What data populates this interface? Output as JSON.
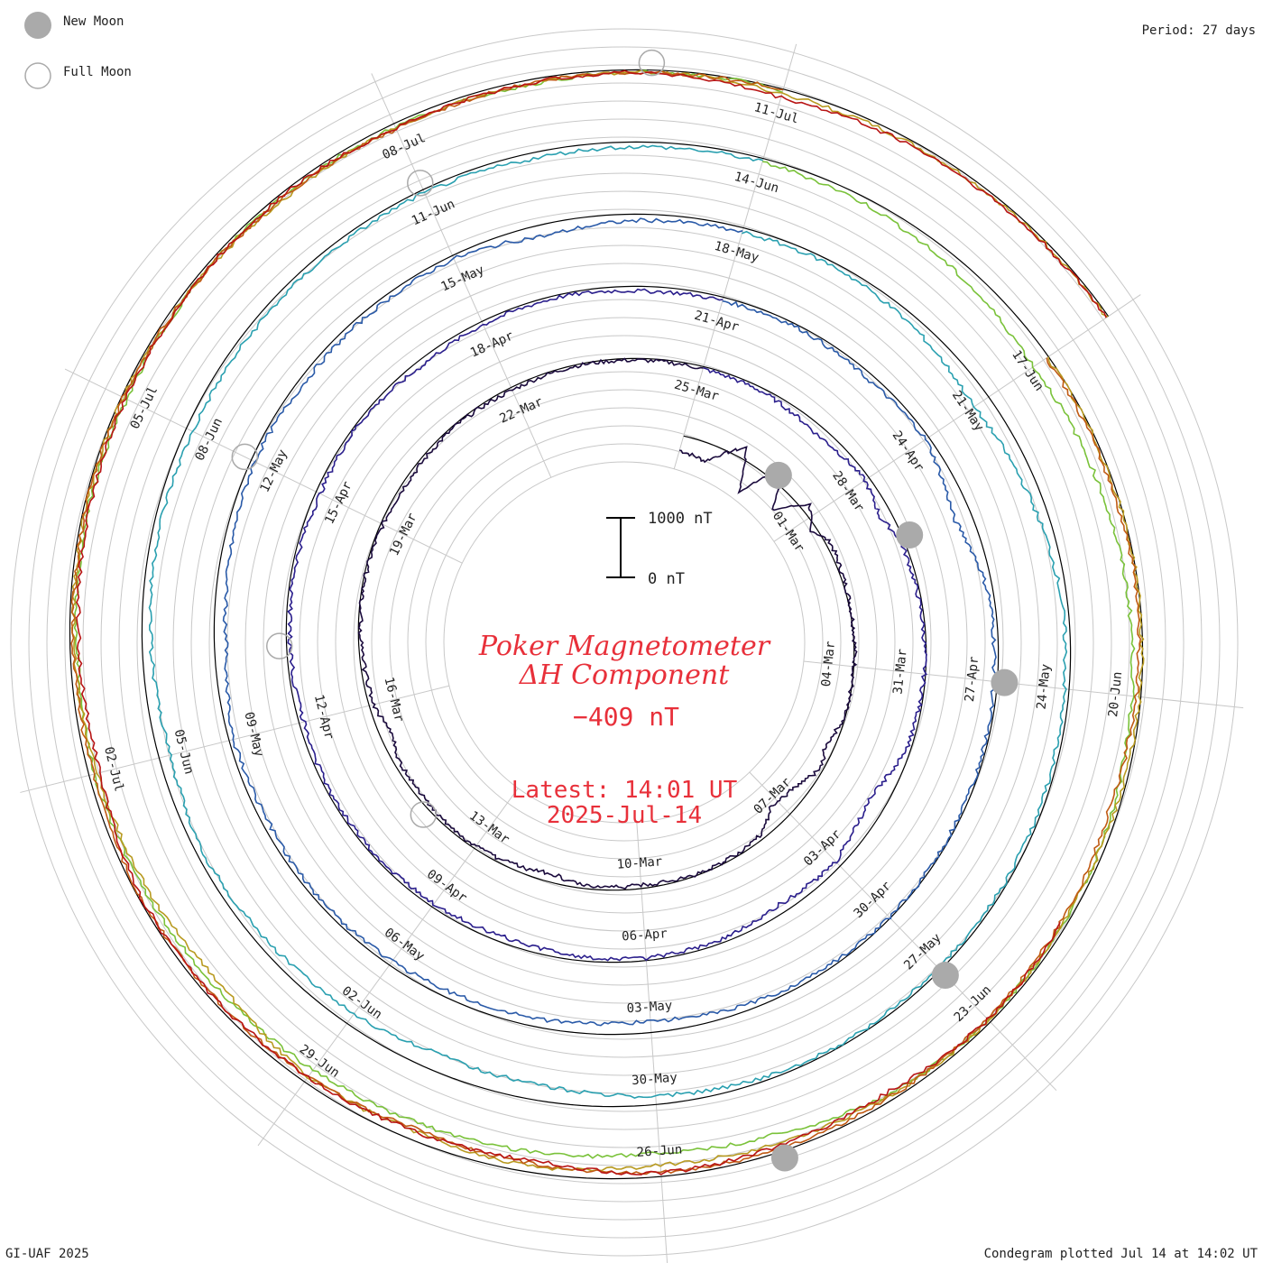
{
  "legend": {
    "new_moon": "New Moon",
    "full_moon": "Full Moon"
  },
  "period": "Period: 27 days",
  "credit": "GI-UAF 2025",
  "plotted": "Condegram plotted Jul 14 at 14:02 UT",
  "title_line1": "Poker Magnetometer",
  "title_line2": "ΔH Component",
  "current_value": "−409 nT",
  "latest_time": "Latest: 14:01 UT",
  "latest_date": "2025-Jul-14",
  "scale": {
    "top_label": "1000 nT",
    "bottom_label": "0 nT",
    "range_nT": [
      0,
      1000
    ]
  },
  "colors": {
    "grid": "#c8c8c8",
    "baseline": "#000000",
    "moon_new": "#aaaaaa",
    "moon_full": "#aaaaaa",
    "title": "#e8303a"
  },
  "chart_data": {
    "type": "condegram-spiral",
    "period_days": 27,
    "component": "ΔH",
    "units": "nT",
    "start_date": "2025-02-26",
    "end_date": "2025-07-14",
    "date_labels": [
      {
        "label": "01-Mar",
        "date": "2025-03-01"
      },
      {
        "label": "04-Mar",
        "date": "2025-03-04"
      },
      {
        "label": "07-Mar",
        "date": "2025-03-07"
      },
      {
        "label": "10-Mar",
        "date": "2025-03-10"
      },
      {
        "label": "13-Mar",
        "date": "2025-03-13"
      },
      {
        "label": "16-Mar",
        "date": "2025-03-16"
      },
      {
        "label": "19-Mar",
        "date": "2025-03-19"
      },
      {
        "label": "22-Mar",
        "date": "2025-03-22"
      },
      {
        "label": "25-Mar",
        "date": "2025-03-25"
      },
      {
        "label": "28-Mar",
        "date": "2025-03-28"
      },
      {
        "label": "31-Mar",
        "date": "2025-03-31"
      },
      {
        "label": "03-Apr",
        "date": "2025-04-03"
      },
      {
        "label": "06-Apr",
        "date": "2025-04-06"
      },
      {
        "label": "09-Apr",
        "date": "2025-04-09"
      },
      {
        "label": "12-Apr",
        "date": "2025-04-12"
      },
      {
        "label": "15-Apr",
        "date": "2025-04-15"
      },
      {
        "label": "18-Apr",
        "date": "2025-04-18"
      },
      {
        "label": "21-Apr",
        "date": "2025-04-21"
      },
      {
        "label": "24-Apr",
        "date": "2025-04-24"
      },
      {
        "label": "27-Apr",
        "date": "2025-04-27"
      },
      {
        "label": "30-Apr",
        "date": "2025-04-30"
      },
      {
        "label": "03-May",
        "date": "2025-05-03"
      },
      {
        "label": "06-May",
        "date": "2025-05-06"
      },
      {
        "label": "09-May",
        "date": "2025-05-09"
      },
      {
        "label": "12-May",
        "date": "2025-05-12"
      },
      {
        "label": "15-May",
        "date": "2025-05-15"
      },
      {
        "label": "18-May",
        "date": "2025-05-18"
      },
      {
        "label": "21-May",
        "date": "2025-05-21"
      },
      {
        "label": "24-May",
        "date": "2025-05-24"
      },
      {
        "label": "27-May",
        "date": "2025-05-27"
      },
      {
        "label": "30-May",
        "date": "2025-05-30"
      },
      {
        "label": "02-Jun",
        "date": "2025-06-02"
      },
      {
        "label": "05-Jun",
        "date": "2025-06-05"
      },
      {
        "label": "08-Jun",
        "date": "2025-06-08"
      },
      {
        "label": "11-Jun",
        "date": "2025-06-11"
      },
      {
        "label": "14-Jun",
        "date": "2025-06-14"
      },
      {
        "label": "17-Jun",
        "date": "2025-06-17"
      },
      {
        "label": "20-Jun",
        "date": "2025-06-20"
      },
      {
        "label": "23-Jun",
        "date": "2025-06-23"
      },
      {
        "label": "26-Jun",
        "date": "2025-06-26"
      },
      {
        "label": "29-Jun",
        "date": "2025-06-29"
      },
      {
        "label": "02-Jul",
        "date": "2025-07-02"
      },
      {
        "label": "05-Jul",
        "date": "2025-07-05"
      },
      {
        "label": "08-Jul",
        "date": "2025-07-08"
      },
      {
        "label": "11-Jul",
        "date": "2025-07-11"
      }
    ],
    "new_moons": [
      "2025-02-28",
      "2025-03-29",
      "2025-04-27",
      "2025-05-27",
      "2025-06-25"
    ],
    "full_moons": [
      "2025-03-14",
      "2025-04-13",
      "2025-05-12",
      "2025-06-11",
      "2025-07-10"
    ],
    "series": [
      {
        "cycle": 1,
        "start": "2025-02-26",
        "color": "#1a0a3c",
        "points": [
          [
            0.0,
            -250
          ],
          [
            0.6,
            -300
          ],
          [
            1.2,
            200
          ],
          [
            1.6,
            -500
          ],
          [
            2.0,
            300
          ],
          [
            2.4,
            -400
          ],
          [
            2.8,
            150
          ],
          [
            3.2,
            -100
          ],
          [
            3.6,
            80
          ],
          [
            4.2,
            40
          ],
          [
            5.0,
            20
          ],
          [
            6.0,
            10
          ],
          [
            7.0,
            -30
          ],
          [
            7.6,
            -150
          ],
          [
            8.0,
            -40
          ],
          [
            8.6,
            -250
          ],
          [
            9.2,
            -300
          ],
          [
            9.6,
            -80
          ],
          [
            10.2,
            -40
          ],
          [
            11.0,
            -20
          ],
          [
            12.0,
            -60
          ],
          [
            13.0,
            -40
          ],
          [
            13.6,
            -150
          ],
          [
            14.0,
            -100
          ],
          [
            14.6,
            -60
          ],
          [
            15.2,
            -40
          ],
          [
            16.0,
            -60
          ],
          [
            17.0,
            -100
          ],
          [
            17.4,
            -200
          ],
          [
            18.0,
            -80
          ],
          [
            19.0,
            -40
          ],
          [
            20.0,
            -20
          ],
          [
            21.0,
            -40
          ],
          [
            22.0,
            -60
          ],
          [
            23.0,
            -30
          ],
          [
            24.0,
            -50
          ],
          [
            25.0,
            -20
          ],
          [
            26.0,
            -30
          ],
          [
            27.0,
            -40
          ]
        ]
      },
      {
        "cycle": 2,
        "start": "2025-03-25",
        "color": "#2a1e8c",
        "points": [
          [
            0.0,
            -40
          ],
          [
            1.0,
            -60
          ],
          [
            2.0,
            -150
          ],
          [
            3.0,
            -80
          ],
          [
            3.6,
            -200
          ],
          [
            4.0,
            -60
          ],
          [
            5.0,
            -40
          ],
          [
            6.0,
            -20
          ],
          [
            7.0,
            -60
          ],
          [
            8.0,
            -300
          ],
          [
            8.6,
            -200
          ],
          [
            9.0,
            -100
          ],
          [
            10.0,
            -150
          ],
          [
            11.0,
            -60
          ],
          [
            12.0,
            -40
          ],
          [
            13.0,
            -80
          ],
          [
            14.0,
            -100
          ],
          [
            15.0,
            -60
          ],
          [
            16.0,
            -50
          ],
          [
            17.0,
            -40
          ],
          [
            18.0,
            -80
          ],
          [
            19.0,
            -60
          ],
          [
            20.0,
            -40
          ],
          [
            21.0,
            -80
          ],
          [
            22.0,
            -30
          ],
          [
            23.0,
            -100
          ],
          [
            24.0,
            -60
          ],
          [
            25.0,
            -40
          ],
          [
            26.0,
            -80
          ],
          [
            27.0,
            -60
          ]
        ]
      },
      {
        "cycle": 3,
        "start": "2025-04-21",
        "color": "#2a5aa8",
        "points": [
          [
            0.0,
            -60
          ],
          [
            1.0,
            -40
          ],
          [
            2.0,
            -100
          ],
          [
            3.0,
            -60
          ],
          [
            4.0,
            -300
          ],
          [
            4.6,
            -150
          ],
          [
            5.0,
            -80
          ],
          [
            6.0,
            -60
          ],
          [
            7.0,
            -40
          ],
          [
            8.0,
            -30
          ],
          [
            9.0,
            -20
          ],
          [
            10.0,
            -60
          ],
          [
            11.0,
            -100
          ],
          [
            12.0,
            -200
          ],
          [
            13.0,
            -150
          ],
          [
            14.0,
            -120
          ],
          [
            15.0,
            -80
          ],
          [
            16.0,
            -60
          ],
          [
            17.0,
            -100
          ],
          [
            18.0,
            -80
          ],
          [
            19.0,
            -200
          ],
          [
            20.0,
            -150
          ],
          [
            21.0,
            -60
          ],
          [
            22.0,
            -100
          ],
          [
            23.0,
            -80
          ],
          [
            24.0,
            -60
          ],
          [
            25.0,
            -200
          ],
          [
            26.0,
            -100
          ],
          [
            27.0,
            -80
          ]
        ]
      },
      {
        "cycle": 4,
        "start": "2025-05-18",
        "color": "#2aa0b0",
        "points": [
          [
            0.0,
            -80
          ],
          [
            1.0,
            -60
          ],
          [
            2.0,
            -150
          ],
          [
            3.0,
            -300
          ],
          [
            4.0,
            -200
          ],
          [
            5.0,
            -100
          ],
          [
            6.0,
            -80
          ],
          [
            7.0,
            -60
          ],
          [
            8.0,
            -40
          ],
          [
            9.0,
            -60
          ],
          [
            10.0,
            -30
          ],
          [
            11.0,
            -60
          ],
          [
            12.0,
            -150
          ],
          [
            13.0,
            -250
          ],
          [
            14.0,
            -300
          ],
          [
            15.0,
            -200
          ],
          [
            16.0,
            -150
          ],
          [
            17.0,
            -100
          ],
          [
            18.0,
            -200
          ],
          [
            19.0,
            -150
          ],
          [
            20.0,
            -100
          ],
          [
            21.0,
            -120
          ],
          [
            22.0,
            -100
          ],
          [
            23.0,
            -80
          ],
          [
            24.0,
            -60
          ],
          [
            25.0,
            -100
          ],
          [
            26.0,
            -80
          ],
          [
            27.0,
            -60
          ]
        ]
      },
      {
        "cycle": 5,
        "start": "2025-06-14",
        "color": "#7ac23a",
        "points": [
          [
            0.0,
            -60
          ],
          [
            1.0,
            -100
          ],
          [
            2.0,
            -200
          ],
          [
            3.0,
            -300
          ],
          [
            4.0,
            -250
          ],
          [
            5.0,
            -200
          ],
          [
            6.0,
            -150
          ],
          [
            7.0,
            -100
          ],
          [
            8.0,
            -60
          ],
          [
            9.0,
            -40
          ],
          [
            10.0,
            -100
          ],
          [
            11.0,
            -300
          ],
          [
            12.0,
            -400
          ],
          [
            13.0,
            -350
          ],
          [
            14.0,
            -300
          ],
          [
            15.0,
            -250
          ],
          [
            16.0,
            -200
          ],
          [
            17.0,
            -150
          ],
          [
            18.0,
            -100
          ],
          [
            19.0,
            -120
          ],
          [
            20.0,
            -80
          ],
          [
            21.0,
            -100
          ],
          [
            22.0,
            -60
          ],
          [
            23.0,
            -40
          ],
          [
            24.0,
            -60
          ],
          [
            25.0,
            -80
          ],
          [
            26.0,
            -40
          ],
          [
            27.0,
            -20
          ]
        ]
      },
      {
        "cycle": 6,
        "start": "2025-06-17",
        "color": "#b89a20",
        "points": [
          [
            0.0,
            -30
          ],
          [
            1.0,
            -20
          ],
          [
            2.0,
            -10
          ],
          [
            3.0,
            -20
          ],
          [
            4.0,
            -60
          ],
          [
            5.0,
            -80
          ],
          [
            6.0,
            -40
          ],
          [
            7.0,
            -80
          ],
          [
            8.0,
            -150
          ],
          [
            9.0,
            -200
          ],
          [
            10.0,
            -100
          ],
          [
            11.0,
            -150
          ],
          [
            12.0,
            -100
          ],
          [
            13.0,
            -300
          ],
          [
            14.0,
            -200
          ],
          [
            15.0,
            -150
          ],
          [
            16.0,
            -60
          ],
          [
            17.0,
            -40
          ],
          [
            18.0,
            -30
          ],
          [
            19.0,
            -60
          ],
          [
            20.0,
            -100
          ],
          [
            21.0,
            -80
          ],
          [
            22.0,
            -60
          ],
          [
            23.0,
            -40
          ],
          [
            24.0,
            -80
          ],
          [
            25.0,
            -60
          ],
          [
            26.0,
            -40
          ],
          [
            27.0,
            -30
          ]
        ]
      },
      {
        "cycle": 7,
        "start": "2025-06-17",
        "color": "#c05a14",
        "points": [
          [
            0.0,
            -40
          ],
          [
            1.0,
            -60
          ],
          [
            2.0,
            -30
          ],
          [
            3.0,
            -80
          ],
          [
            4.0,
            -150
          ],
          [
            5.0,
            -100
          ],
          [
            6.0,
            -80
          ],
          [
            7.0,
            -60
          ],
          [
            8.0,
            -40
          ],
          [
            9.0,
            -80
          ],
          [
            10.0,
            -150
          ],
          [
            11.0,
            -200
          ],
          [
            12.0,
            -100
          ],
          [
            13.0,
            -60
          ],
          [
            14.0,
            -40
          ],
          [
            15.0,
            -80
          ],
          [
            16.0,
            -60
          ],
          [
            17.0,
            -40
          ],
          [
            18.0,
            -30
          ],
          [
            19.0,
            -60
          ],
          [
            20.0,
            -80
          ],
          [
            21.0,
            -100
          ],
          [
            22.0,
            -60
          ],
          [
            23.0,
            -40
          ],
          [
            24.0,
            -20
          ]
        ]
      },
      {
        "cycle": 8,
        "start": "2025-06-22",
        "color": "#b81414",
        "points": [
          [
            0.0,
            -80
          ],
          [
            1.0,
            -60
          ],
          [
            2.0,
            -150
          ],
          [
            3.0,
            -100
          ],
          [
            4.0,
            -60
          ],
          [
            5.0,
            -200
          ],
          [
            6.0,
            -150
          ],
          [
            7.0,
            -100
          ],
          [
            8.0,
            -60
          ],
          [
            9.0,
            -40
          ],
          [
            10.0,
            -200
          ],
          [
            11.0,
            -150
          ],
          [
            12.0,
            -100
          ],
          [
            13.0,
            -80
          ],
          [
            14.0,
            -60
          ],
          [
            15.0,
            -40
          ],
          [
            16.0,
            -80
          ],
          [
            17.0,
            -60
          ],
          [
            18.0,
            -40
          ],
          [
            19.0,
            -150
          ],
          [
            20.0,
            -80
          ],
          [
            21.0,
            -60
          ],
          [
            22.0,
            -40
          ]
        ]
      }
    ]
  }
}
